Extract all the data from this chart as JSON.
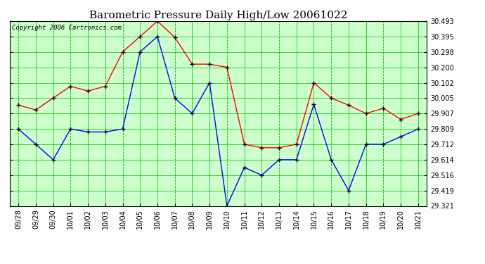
{
  "title": "Barometric Pressure Daily High/Low 20061022",
  "copyright": "Copyright 2006 Cartronics.com",
  "dates": [
    "09/28",
    "09/29",
    "09/30",
    "10/01",
    "10/02",
    "10/03",
    "10/04",
    "10/05",
    "10/06",
    "10/07",
    "10/08",
    "10/09",
    "10/10",
    "10/11",
    "10/12",
    "10/13",
    "10/14",
    "10/15",
    "10/16",
    "10/17",
    "10/18",
    "10/19",
    "10/20",
    "10/21"
  ],
  "high": [
    29.96,
    29.93,
    30.005,
    30.08,
    30.05,
    30.08,
    30.298,
    30.395,
    30.493,
    30.39,
    30.22,
    30.22,
    30.2,
    29.712,
    29.69,
    29.69,
    29.712,
    30.102,
    30.005,
    29.96,
    29.907,
    29.94,
    29.87,
    29.907
  ],
  "low": [
    29.809,
    29.712,
    29.614,
    29.809,
    29.79,
    29.79,
    29.809,
    30.298,
    30.395,
    30.005,
    29.907,
    30.102,
    29.321,
    29.565,
    29.516,
    29.614,
    29.614,
    29.965,
    29.614,
    29.419,
    29.712,
    29.712,
    29.76,
    29.809
  ],
  "ylim_min": 29.321,
  "ylim_max": 30.493,
  "yticks": [
    29.321,
    29.419,
    29.516,
    29.614,
    29.712,
    29.809,
    29.907,
    30.005,
    30.102,
    30.2,
    30.298,
    30.395,
    30.493
  ],
  "high_color": "#ff0000",
  "low_color": "#0000ff",
  "grid_color": "#00bb00",
  "bg_color": "#ccffcc",
  "marker": "+",
  "marker_color": "#000000",
  "title_fontsize": 11,
  "copyright_fontsize": 6.5,
  "tick_fontsize": 7,
  "line_width": 1.0
}
